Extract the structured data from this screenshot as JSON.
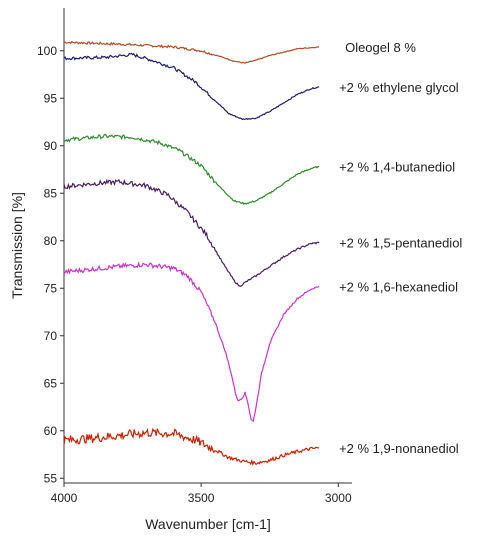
{
  "chart_data": {
    "type": "line",
    "title": "",
    "xlabel": "Wavenumber [cm-1]",
    "ylabel": "Transmission [%]",
    "xlim": [
      4000,
      2950
    ],
    "ylim": [
      54.5,
      104.5
    ],
    "x_reversed": true,
    "x_ticks": [
      4000,
      3500,
      3000
    ],
    "y_ticks": [
      55,
      60,
      65,
      70,
      75,
      80,
      85,
      90,
      95,
      100
    ],
    "grid": false,
    "legend": "labels at right end of each curve",
    "series": [
      {
        "name": "Oleogel 8 %",
        "color": "#b04a2a",
        "noise": 0.15,
        "points": [
          [
            4000,
            100.9
          ],
          [
            3800,
            100.7
          ],
          [
            3600,
            100.4
          ],
          [
            3500,
            100.0
          ],
          [
            3420,
            99.3
          ],
          [
            3380,
            98.9
          ],
          [
            3340,
            98.7
          ],
          [
            3300,
            99.0
          ],
          [
            3250,
            99.5
          ],
          [
            3150,
            100.2
          ],
          [
            3070,
            100.4
          ]
        ]
      },
      {
        "name": "+2 % ethylene glycol",
        "color": "#1f1f6b",
        "noise": 0.2,
        "points": [
          [
            4000,
            99.2
          ],
          [
            3850,
            99.3
          ],
          [
            3750,
            99.6
          ],
          [
            3680,
            99.0
          ],
          [
            3600,
            98.2
          ],
          [
            3520,
            96.7
          ],
          [
            3450,
            94.8
          ],
          [
            3400,
            93.4
          ],
          [
            3350,
            92.8
          ],
          [
            3300,
            92.9
          ],
          [
            3250,
            93.6
          ],
          [
            3200,
            94.5
          ],
          [
            3150,
            95.4
          ],
          [
            3100,
            96.0
          ],
          [
            3070,
            96.2
          ]
        ]
      },
      {
        "name": "+2 % 1,4-butanediol",
        "color": "#2e8b2e",
        "noise": 0.25,
        "points": [
          [
            4000,
            90.6
          ],
          [
            3850,
            91.0
          ],
          [
            3750,
            90.9
          ],
          [
            3650,
            90.3
          ],
          [
            3580,
            89.5
          ],
          [
            3500,
            87.9
          ],
          [
            3430,
            85.6
          ],
          [
            3380,
            84.2
          ],
          [
            3340,
            83.9
          ],
          [
            3300,
            84.2
          ],
          [
            3250,
            85.0
          ],
          [
            3200,
            86.0
          ],
          [
            3150,
            87.0
          ],
          [
            3100,
            87.6
          ],
          [
            3070,
            87.8
          ]
        ]
      },
      {
        "name": "+2 % 1,5-pentanediol",
        "color": "#4a1f5e",
        "noise": 0.3,
        "points": [
          [
            4000,
            85.7
          ],
          [
            3900,
            86.0
          ],
          [
            3800,
            86.2
          ],
          [
            3700,
            85.8
          ],
          [
            3620,
            84.8
          ],
          [
            3550,
            83.0
          ],
          [
            3480,
            80.6
          ],
          [
            3420,
            77.6
          ],
          [
            3380,
            75.8
          ],
          [
            3360,
            75.2
          ],
          [
            3340,
            75.6
          ],
          [
            3300,
            76.3
          ],
          [
            3250,
            77.3
          ],
          [
            3200,
            78.3
          ],
          [
            3150,
            79.1
          ],
          [
            3100,
            79.7
          ],
          [
            3070,
            79.8
          ]
        ]
      },
      {
        "name": "+2 % 1,6-hexanediol",
        "color": "#cc33cc",
        "noise": 0.3,
        "points": [
          [
            4000,
            76.7
          ],
          [
            3900,
            77.0
          ],
          [
            3800,
            77.3
          ],
          [
            3700,
            77.5
          ],
          [
            3600,
            77.1
          ],
          [
            3550,
            76.3
          ],
          [
            3500,
            74.6
          ],
          [
            3450,
            71.5
          ],
          [
            3410,
            68.2
          ],
          [
            3390,
            66.0
          ],
          [
            3375,
            64.0
          ],
          [
            3365,
            63.1
          ],
          [
            3350,
            63.5
          ],
          [
            3340,
            64.0
          ],
          [
            3330,
            63.0
          ],
          [
            3318,
            61.2
          ],
          [
            3310,
            61.0
          ],
          [
            3300,
            62.5
          ],
          [
            3280,
            66.0
          ],
          [
            3250,
            69.2
          ],
          [
            3200,
            72.2
          ],
          [
            3150,
            73.9
          ],
          [
            3100,
            74.9
          ],
          [
            3070,
            75.2
          ]
        ]
      },
      {
        "name": "+2 % 1,9-nonanediol",
        "color": "#cc2200",
        "noise": 0.6,
        "points": [
          [
            4000,
            59.0
          ],
          [
            3900,
            59.2
          ],
          [
            3800,
            59.5
          ],
          [
            3700,
            59.8
          ],
          [
            3600,
            59.7
          ],
          [
            3520,
            59.0
          ],
          [
            3450,
            58.0
          ],
          [
            3400,
            57.2
          ],
          [
            3350,
            56.8
          ],
          [
            3300,
            56.6
          ],
          [
            3250,
            56.9
          ],
          [
            3200,
            57.4
          ],
          [
            3150,
            57.8
          ],
          [
            3100,
            58.1
          ],
          [
            3070,
            58.2
          ]
        ]
      }
    ]
  }
}
